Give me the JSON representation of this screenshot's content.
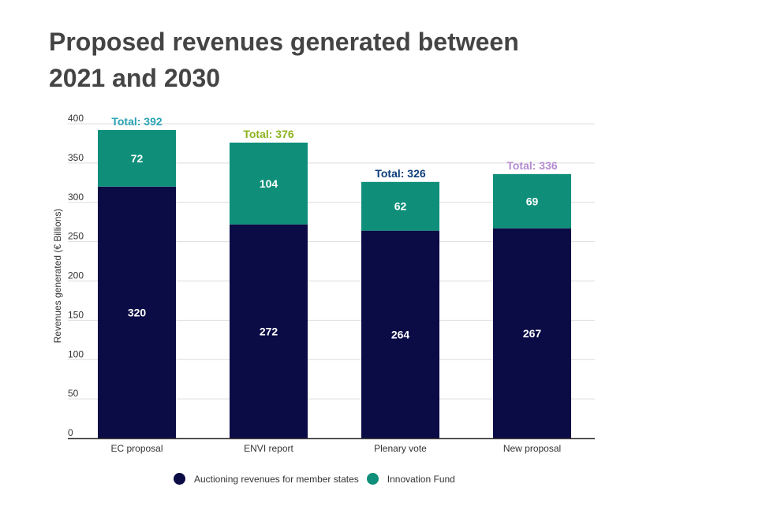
{
  "title": "Proposed revenues generated between 2021 and 2030",
  "chart_data": {
    "type": "bar",
    "stacked": true,
    "title": "Proposed revenues generated between 2021 and 2030",
    "xlabel": "",
    "ylabel": "Revenues generated (€ Billions)",
    "ylim": [
      0,
      400
    ],
    "yticks": [
      0,
      50,
      100,
      150,
      200,
      250,
      300,
      350,
      400
    ],
    "grid": true,
    "legend_position": "bottom",
    "categories": [
      "EC proposal",
      "ENVI report",
      "Plenary vote",
      "New proposal"
    ],
    "series": [
      {
        "name": "Auctioning revenues for member states",
        "color": "#0b0b45",
        "values": [
          320,
          272,
          264,
          267
        ]
      },
      {
        "name": "Innovation Fund",
        "color": "#0f8f7a",
        "values": [
          72,
          104,
          62,
          69
        ]
      }
    ],
    "totals": [
      {
        "label": "Total: 392",
        "color": "#2aa3b4"
      },
      {
        "label": "Total: 376",
        "color": "#8db31e"
      },
      {
        "label": "Total: 326",
        "color": "#0d3d7a"
      },
      {
        "label": "Total: 336",
        "color": "#b48ad0"
      }
    ]
  }
}
